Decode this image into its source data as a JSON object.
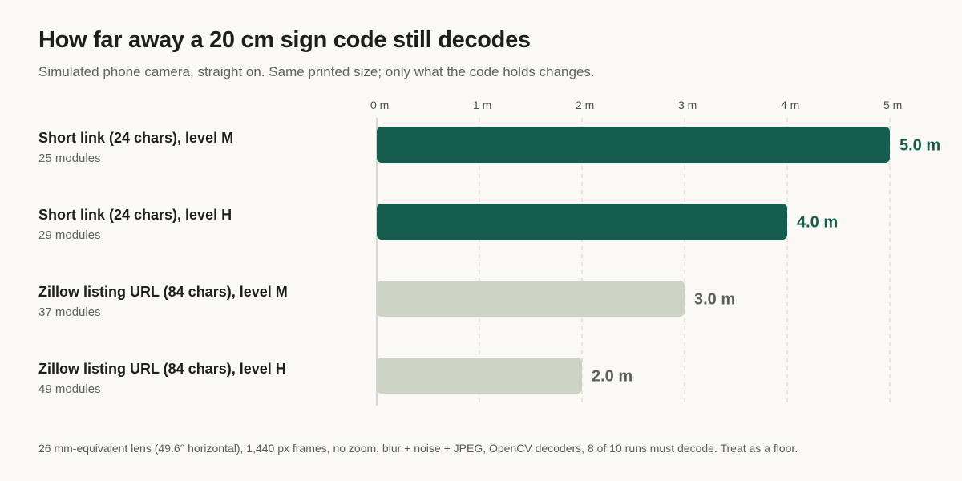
{
  "header": {
    "title": "How far away a 20 cm sign code still decodes",
    "subtitle": "Simulated phone camera, straight on. Same printed size; only what the code holds changes."
  },
  "footnote": "26 mm-equivalent lens (49.6° horizontal), 1,440 px frames, no zoom, blur + noise + JPEG, OpenCV decoders, 8 of 10 runs must decode. Treat as a floor.",
  "colors": {
    "highlight_bar": "#155e4f",
    "muted_bar": "#ced4c5",
    "highlight_text": "#155e4f",
    "muted_text": "#5a5f5b",
    "gridline": "#cfd1cc",
    "baseline": "#c9cbc6"
  },
  "chart_data": {
    "type": "bar",
    "orientation": "horizontal",
    "title": "How far away a 20 cm sign code still decodes",
    "subtitle": "Simulated phone camera, straight on. Same printed size; only what the code holds changes.",
    "categories": [
      "Short link (24 chars), level M",
      "Short link (24 chars), level H",
      "Zillow listing URL (84 chars), level M",
      "Zillow listing URL (84 chars), level H"
    ],
    "category_sublabels": [
      "25 modules",
      "29 modules",
      "37 modules",
      "49 modules"
    ],
    "values": [
      5.0,
      4.0,
      3.0,
      2.0
    ],
    "value_labels": [
      "5.0 m",
      "4.0 m",
      "3.0 m",
      "2.0 m"
    ],
    "highlighted": [
      true,
      true,
      false,
      false
    ],
    "x_ticks": [
      0,
      1,
      2,
      3,
      4,
      5
    ],
    "x_tick_labels": [
      "0 m",
      "1 m",
      "2 m",
      "3 m",
      "4 m",
      "5 m"
    ],
    "xlim": [
      0,
      5
    ],
    "xlabel": "",
    "ylabel": "",
    "grid": true,
    "axis_position": "top",
    "legend": "none"
  }
}
